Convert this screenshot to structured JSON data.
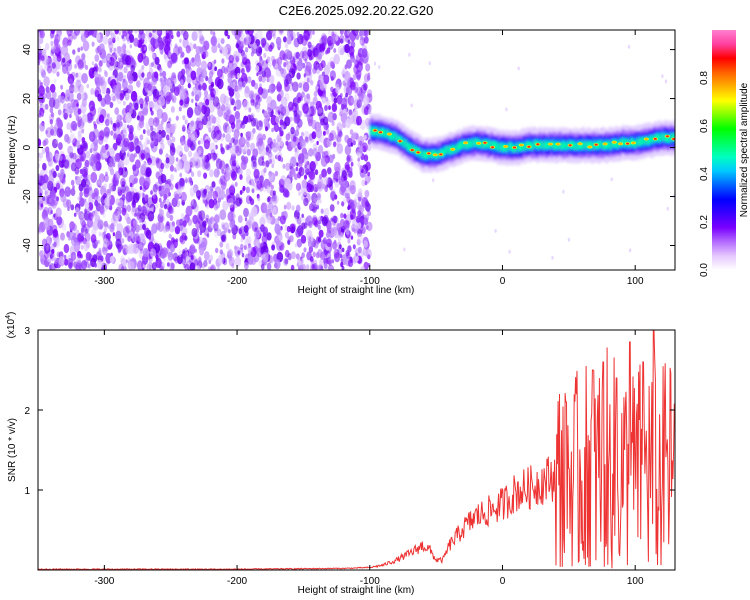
{
  "title": "C2E6.2025.092.20.22.G20",
  "chart_data": [
    {
      "type": "heatmap",
      "name": "spectrogram",
      "xlabel": "Height of straight line (km)",
      "ylabel": "Frequency (Hz)",
      "xlim": [
        -350,
        130
      ],
      "ylim": [
        -50,
        48
      ],
      "xticks": [
        -300,
        -200,
        -100,
        0,
        100
      ],
      "yticks": [
        -40,
        -20,
        0,
        20,
        40
      ],
      "ridge": {
        "x": [
          -100,
          -90,
          -80,
          -70,
          -60,
          -50,
          -40,
          -30,
          -20,
          -10,
          0,
          10,
          20,
          30,
          40,
          50,
          60,
          70,
          80,
          90,
          100,
          110,
          120,
          130
        ],
        "y": [
          7,
          6,
          4,
          0,
          -3,
          -3,
          -1,
          1,
          2,
          1,
          0,
          0,
          1,
          1,
          1,
          1,
          1,
          1,
          1,
          2,
          2,
          3,
          4,
          4
        ]
      },
      "colorbar": {
        "label": "Normalized spectral amplitude",
        "range": [
          0,
          1
        ],
        "ticks": [
          "0.0",
          "0.2",
          "0.4",
          "0.6",
          "0.8"
        ],
        "colors": [
          "#ffffff",
          "#e6c8ff",
          "#b36bff",
          "#7a00ff",
          "#3a00ff",
          "#0000ff",
          "#0060ff",
          "#00c8ff",
          "#00ffc0",
          "#00ff60",
          "#00ff00",
          "#80ff00",
          "#ffff00",
          "#ffb000",
          "#ff6000",
          "#ff0000",
          "#ff40a0",
          "#ff80d0"
        ]
      }
    },
    {
      "type": "line",
      "name": "snr",
      "xlabel": "Height of straight line (km)",
      "ylabel": "SNR (10 * v/v)",
      "yscale_label": "(x10",
      "yscale_exp": "4",
      "xlim": [
        -350,
        130
      ],
      "ylim": [
        0,
        3
      ],
      "xticks": [
        -300,
        -200,
        -100,
        0,
        100
      ],
      "yticks": [
        1,
        2,
        3
      ],
      "color": "#ee3333",
      "envelope": {
        "x": [
          -350,
          -200,
          -120,
          -100,
          -90,
          -80,
          -70,
          -60,
          -55,
          -50,
          -45,
          -40,
          -30,
          -20,
          -10,
          0,
          10,
          20,
          30,
          40,
          50,
          60,
          70,
          80,
          90,
          100,
          110,
          120,
          130
        ],
        "y": [
          0.01,
          0.01,
          0.02,
          0.03,
          0.06,
          0.12,
          0.2,
          0.3,
          0.25,
          0.12,
          0.12,
          0.3,
          0.5,
          0.65,
          0.72,
          0.8,
          0.95,
          1.0,
          1.08,
          1.15,
          1.1,
          1.2,
          1.25,
          1.3,
          1.2,
          1.2,
          1.3,
          1.2,
          1.3
        ]
      },
      "peaks": [
        {
          "x": 48,
          "y": 2.1
        },
        {
          "x": 68,
          "y": 2.5
        },
        {
          "x": 76,
          "y": 2.6
        },
        {
          "x": 86,
          "y": 2.4
        },
        {
          "x": 96,
          "y": 2.85
        },
        {
          "x": 106,
          "y": 2.6
        },
        {
          "x": 114,
          "y": 3.0
        },
        {
          "x": 122,
          "y": 2.1
        }
      ]
    }
  ]
}
